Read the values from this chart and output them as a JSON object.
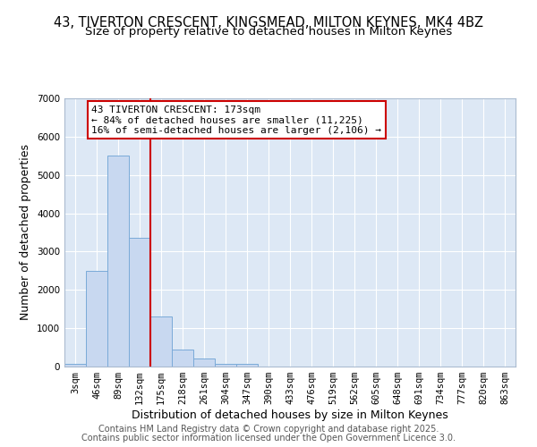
{
  "title1": "43, TIVERTON CRESCENT, KINGSMEAD, MILTON KEYNES, MK4 4BZ",
  "title2": "Size of property relative to detached houses in Milton Keynes",
  "xlabel": "Distribution of detached houses by size in Milton Keynes",
  "ylabel": "Number of detached properties",
  "bar_labels": [
    "3sqm",
    "46sqm",
    "89sqm",
    "132sqm",
    "175sqm",
    "218sqm",
    "261sqm",
    "304sqm",
    "347sqm",
    "390sqm",
    "433sqm",
    "476sqm",
    "519sqm",
    "562sqm",
    "605sqm",
    "648sqm",
    "691sqm",
    "734sqm",
    "777sqm",
    "820sqm",
    "863sqm"
  ],
  "bar_values": [
    75,
    2500,
    5500,
    3350,
    1300,
    450,
    200,
    75,
    60,
    0,
    0,
    0,
    0,
    0,
    0,
    0,
    0,
    0,
    0,
    0,
    0
  ],
  "bar_color": "#c8d8f0",
  "bar_edge_color": "#7aaad8",
  "bg_color": "#dde8f5",
  "grid_color": "#ffffff",
  "vline_x_index": 4,
  "vline_color": "#cc0000",
  "annotation_text": "43 TIVERTON CRESCENT: 173sqm\n← 84% of detached houses are smaller (11,225)\n16% of semi-detached houses are larger (2,106) →",
  "annotation_box_color": "#ffffff",
  "annotation_box_edge": "#cc0000",
  "ylim": [
    0,
    7000
  ],
  "yticks": [
    0,
    1000,
    2000,
    3000,
    4000,
    5000,
    6000,
    7000
  ],
  "footer1": "Contains HM Land Registry data © Crown copyright and database right 2025.",
  "footer2": "Contains public sector information licensed under the Open Government Licence 3.0.",
  "title1_fontsize": 10.5,
  "title2_fontsize": 9.5,
  "tick_fontsize": 7.5,
  "ylabel_fontsize": 9,
  "xlabel_fontsize": 9,
  "footer_fontsize": 7
}
